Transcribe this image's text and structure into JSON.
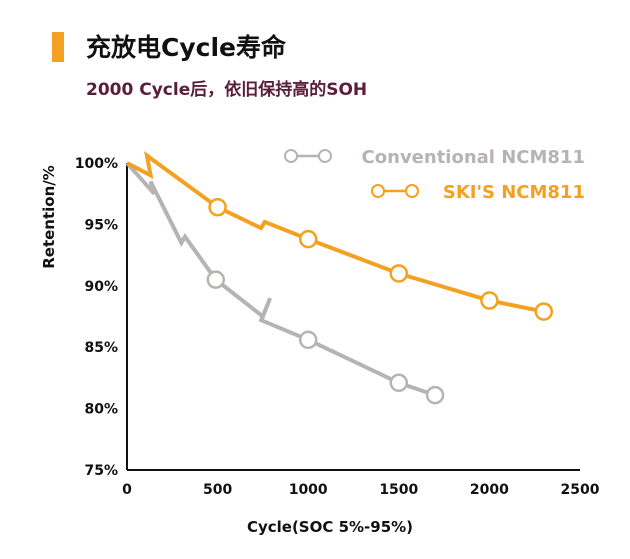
{
  "header": {
    "title": "充放电Cycle寿命",
    "subtitle": "2000 Cycle后，依旧保持高的SOH"
  },
  "colors": {
    "accent": "#f4a020",
    "subtitle": "#5a1e3a"
  },
  "chart_data": {
    "type": "line",
    "xlabel": "Cycle(SOC 5%-95%)",
    "ylabel": "Retention/%",
    "xlim": [
      0,
      2500
    ],
    "ylim": [
      75,
      100
    ],
    "xticks": [
      "0",
      "500",
      "1000",
      "1500",
      "2000",
      "2500"
    ],
    "yticks": [
      "75%",
      "80%",
      "85%",
      "90%",
      "95%",
      "100%"
    ],
    "legend_position": "top-right",
    "grid": false,
    "series": [
      {
        "name": "Conventional NCM811",
        "color": "#b8b3b3",
        "line": [
          [
            0,
            100
          ],
          [
            150,
            97.5
          ],
          [
            130,
            98.5
          ],
          [
            300,
            93.5
          ],
          [
            320,
            94
          ],
          [
            490,
            90.5
          ],
          [
            750,
            87.5
          ],
          [
            790,
            89
          ],
          [
            740,
            87.2
          ],
          [
            1000,
            85.6
          ],
          [
            1500,
            82.1
          ],
          [
            1700,
            81.1
          ]
        ],
        "markers": [
          [
            490,
            90.5
          ],
          [
            1000,
            85.6
          ],
          [
            1500,
            82.1
          ],
          [
            1700,
            81.1
          ]
        ]
      },
      {
        "name": "SKI'S NCM811",
        "color": "#f4a020",
        "line": [
          [
            0,
            100
          ],
          [
            130,
            99
          ],
          [
            110,
            100.6
          ],
          [
            500,
            96.4
          ],
          [
            740,
            94.7
          ],
          [
            760,
            95.2
          ],
          [
            1000,
            93.8
          ],
          [
            1500,
            91
          ],
          [
            2000,
            88.8
          ],
          [
            2300,
            87.9
          ]
        ],
        "markers": [
          [
            500,
            96.4
          ],
          [
            1000,
            93.8
          ],
          [
            1500,
            91
          ],
          [
            2000,
            88.8
          ],
          [
            2300,
            87.9
          ]
        ]
      }
    ]
  }
}
